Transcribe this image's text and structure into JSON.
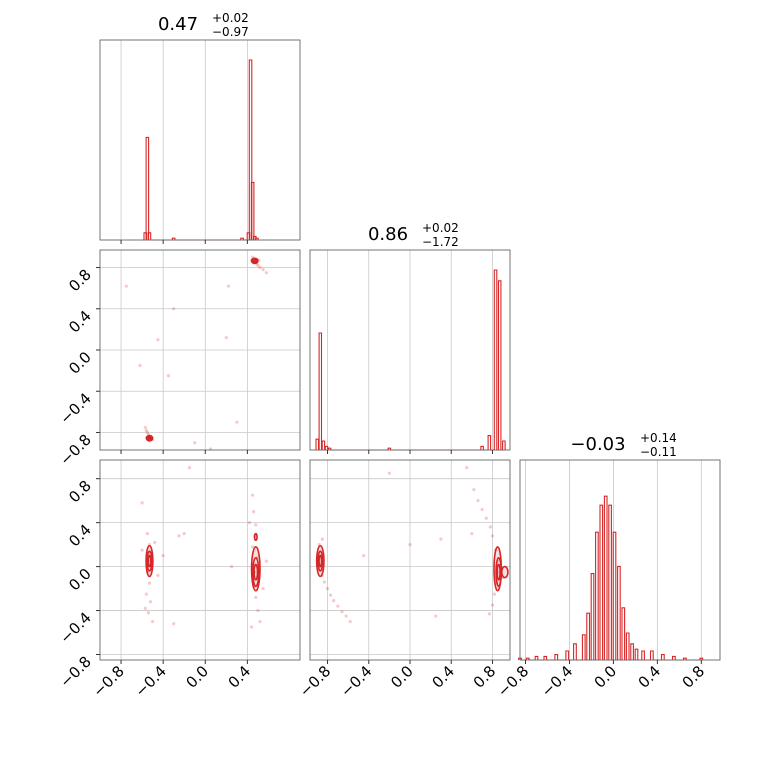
{
  "chart_data": {
    "type": "corner",
    "color": "#d62728",
    "grid": true,
    "titles": [
      {
        "value": "0.47",
        "plus": "+0.02",
        "minus": "−0.97"
      },
      {
        "value": "0.86",
        "plus": "+0.02",
        "minus": "−1.72"
      },
      {
        "value": "−0.03",
        "plus": "+0.14",
        "minus": "−0.11"
      }
    ],
    "ranges": [
      [
        -1.0,
        0.9
      ],
      [
        -0.97,
        0.97
      ],
      [
        -0.85,
        0.97
      ]
    ],
    "ticks": [
      [
        -0.8,
        -0.4,
        0.0,
        0.4
      ],
      [
        -0.8,
        -0.4,
        0.0,
        0.4,
        0.8
      ],
      [
        -0.8,
        -0.4,
        0.0,
        0.4,
        0.8
      ]
    ],
    "tick_labels": [
      [
        "−0.8",
        "−0.4",
        "0.0",
        "0.4"
      ],
      [
        "−0.8",
        "−0.4",
        "0.0",
        "0.4",
        "0.8"
      ],
      [
        "−0.8",
        "−0.4",
        "0.0",
        "0.4",
        "0.8"
      ]
    ],
    "histograms": [
      {
        "param": 0,
        "bins": [
          [
            -0.59,
            0.0
          ],
          [
            -0.57,
            0.04
          ],
          [
            -0.55,
            0.57
          ],
          [
            -0.53,
            0.04
          ],
          [
            -0.51,
            0.0
          ],
          [
            -0.3,
            0.01
          ],
          [
            0.35,
            0.01
          ],
          [
            0.41,
            0.04
          ],
          [
            0.43,
            1.0
          ],
          [
            0.45,
            0.32
          ],
          [
            0.47,
            0.02
          ],
          [
            0.49,
            0.01
          ]
        ]
      },
      {
        "param": 1,
        "bins": [
          [
            -0.9,
            0.06
          ],
          [
            -0.87,
            0.65
          ],
          [
            -0.84,
            0.05
          ],
          [
            -0.81,
            0.02
          ],
          [
            -0.78,
            0.01
          ],
          [
            -0.2,
            0.01
          ],
          [
            0.7,
            0.02
          ],
          [
            0.77,
            0.08
          ],
          [
            0.83,
            1.0
          ],
          [
            0.87,
            0.94
          ],
          [
            0.91,
            0.05
          ]
        ]
      },
      {
        "param": 2,
        "bins": [
          [
            -0.85,
            0.01
          ],
          [
            -0.78,
            0.01
          ],
          [
            -0.7,
            0.02
          ],
          [
            -0.62,
            0.02
          ],
          [
            -0.52,
            0.03
          ],
          [
            -0.42,
            0.05
          ],
          [
            -0.35,
            0.09
          ],
          [
            -0.27,
            0.14
          ],
          [
            -0.23,
            0.26
          ],
          [
            -0.19,
            0.48
          ],
          [
            -0.15,
            0.71
          ],
          [
            -0.11,
            0.86
          ],
          [
            -0.07,
            0.91
          ],
          [
            -0.03,
            0.86
          ],
          [
            0.01,
            0.71
          ],
          [
            0.05,
            0.52
          ],
          [
            0.09,
            0.29
          ],
          [
            0.13,
            0.15
          ],
          [
            0.17,
            0.09
          ],
          [
            0.21,
            0.06
          ],
          [
            0.27,
            0.05
          ],
          [
            0.35,
            0.05
          ],
          [
            0.45,
            0.03
          ],
          [
            0.55,
            0.02
          ],
          [
            0.65,
            0.01
          ],
          [
            0.8,
            0.01
          ]
        ]
      }
    ],
    "scatter_2d": [
      {
        "x": 0,
        "y": 1,
        "points": [
          [
            0.47,
            0.86
          ],
          [
            0.48,
            0.85
          ],
          [
            0.46,
            0.88
          ],
          [
            0.5,
            0.82
          ],
          [
            0.52,
            0.8
          ],
          [
            0.45,
            0.9
          ],
          [
            0.55,
            0.78
          ],
          [
            0.58,
            0.75
          ],
          [
            0.49,
            0.84
          ],
          [
            0.44,
            0.87
          ],
          [
            0.51,
            0.87
          ],
          [
            -0.53,
            -0.86
          ],
          [
            -0.52,
            -0.84
          ],
          [
            -0.54,
            -0.82
          ],
          [
            -0.55,
            -0.8
          ],
          [
            -0.51,
            -0.85
          ],
          [
            -0.56,
            -0.78
          ],
          [
            -0.57,
            -0.75
          ],
          [
            -0.5,
            -0.87
          ],
          [
            -0.53,
            -0.88
          ],
          [
            -0.35,
            -0.25
          ],
          [
            -0.62,
            -0.15
          ],
          [
            -0.75,
            0.62
          ],
          [
            -0.3,
            0.4
          ],
          [
            0.2,
            0.12
          ],
          [
            0.05,
            -0.96
          ],
          [
            -0.1,
            -0.9
          ],
          [
            0.3,
            -0.7
          ],
          [
            0.22,
            0.62
          ],
          [
            -0.45,
            0.1
          ]
        ]
      },
      {
        "x": 0,
        "y": 2,
        "points": [
          [
            -0.53,
            0.2
          ],
          [
            -0.54,
            0.12
          ],
          [
            -0.52,
            0.05
          ],
          [
            -0.55,
            -0.05
          ],
          [
            -0.53,
            -0.15
          ],
          [
            -0.56,
            -0.25
          ],
          [
            -0.52,
            -0.32
          ],
          [
            -0.54,
            -0.42
          ],
          [
            -0.5,
            -0.5
          ],
          [
            -0.57,
            -0.38
          ],
          [
            -0.55,
            0.3
          ],
          [
            -0.6,
            0.15
          ],
          [
            -0.48,
            0.22
          ],
          [
            0.45,
            0.65
          ],
          [
            0.46,
            0.5
          ],
          [
            0.48,
            0.38
          ],
          [
            0.47,
            0.28
          ],
          [
            0.45,
            0.18
          ],
          [
            0.49,
            0.08
          ],
          [
            0.47,
            -0.05
          ],
          [
            0.46,
            -0.18
          ],
          [
            0.48,
            -0.28
          ],
          [
            0.5,
            -0.4
          ],
          [
            0.52,
            -0.5
          ],
          [
            0.44,
            -0.55
          ],
          [
            0.55,
            -0.2
          ],
          [
            0.58,
            0.05
          ],
          [
            0.42,
            0.4
          ],
          [
            -0.6,
            0.58
          ],
          [
            -0.2,
            0.3
          ],
          [
            -0.45,
            -0.08
          ],
          [
            -0.3,
            -0.52
          ],
          [
            -0.15,
            0.9
          ],
          [
            -0.25,
            0.28
          ],
          [
            0.25,
            0.0
          ],
          [
            -0.4,
            0.1
          ]
        ]
      },
      {
        "x": 1,
        "y": 2,
        "points": [
          [
            -0.88,
            0.2
          ],
          [
            -0.86,
            0.1
          ],
          [
            -0.87,
            0.0
          ],
          [
            -0.85,
            -0.08
          ],
          [
            -0.83,
            -0.14
          ],
          [
            -0.8,
            -0.2
          ],
          [
            -0.77,
            -0.26
          ],
          [
            -0.74,
            -0.31
          ],
          [
            -0.7,
            -0.36
          ],
          [
            -0.66,
            -0.41
          ],
          [
            -0.62,
            -0.45
          ],
          [
            -0.58,
            -0.5
          ],
          [
            -0.85,
            0.25
          ],
          [
            -0.9,
            0.05
          ],
          [
            0.62,
            0.7
          ],
          [
            0.66,
            0.6
          ],
          [
            0.7,
            0.52
          ],
          [
            0.74,
            0.44
          ],
          [
            0.78,
            0.36
          ],
          [
            0.8,
            0.28
          ],
          [
            0.83,
            0.15
          ],
          [
            0.85,
            0.05
          ],
          [
            0.86,
            -0.05
          ],
          [
            0.84,
            -0.15
          ],
          [
            0.82,
            -0.25
          ],
          [
            0.8,
            -0.35
          ],
          [
            0.77,
            -0.43
          ],
          [
            0.88,
            0.0
          ],
          [
            0.9,
            -0.1
          ],
          [
            0.6,
            0.3
          ],
          [
            0.25,
            -0.45
          ],
          [
            -0.2,
            0.85
          ],
          [
            0.0,
            0.2
          ],
          [
            0.55,
            0.9
          ],
          [
            -0.45,
            0.1
          ],
          [
            0.3,
            0.25
          ]
        ]
      }
    ],
    "contours_2d": [
      {
        "x": 0,
        "y": 1,
        "ellipses": [
          [
            0.47,
            0.865,
            0.03,
            0.025
          ],
          [
            0.47,
            0.865,
            0.02,
            0.016
          ],
          [
            0.47,
            0.865,
            0.012,
            0.01
          ],
          [
            -0.53,
            -0.855,
            0.03,
            0.025
          ],
          [
            -0.53,
            -0.855,
            0.018,
            0.015
          ],
          [
            -0.53,
            -0.855,
            0.01,
            0.008
          ]
        ]
      },
      {
        "x": 0,
        "y": 2,
        "ellipses": [
          [
            -0.53,
            0.05,
            0.032,
            0.14
          ],
          [
            -0.53,
            0.05,
            0.022,
            0.09
          ],
          [
            -0.53,
            0.05,
            0.012,
            0.05
          ],
          [
            0.48,
            -0.02,
            0.04,
            0.2
          ],
          [
            0.48,
            -0.05,
            0.028,
            0.13
          ],
          [
            0.48,
            -0.05,
            0.016,
            0.07
          ],
          [
            0.48,
            0.27,
            0.012,
            0.03
          ]
        ]
      },
      {
        "x": 1,
        "y": 2,
        "ellipses": [
          [
            -0.87,
            0.05,
            0.035,
            0.14
          ],
          [
            -0.87,
            0.05,
            0.022,
            0.09
          ],
          [
            -0.87,
            0.05,
            0.012,
            0.05
          ],
          [
            0.85,
            -0.02,
            0.035,
            0.2
          ],
          [
            0.86,
            -0.05,
            0.025,
            0.13
          ],
          [
            0.86,
            -0.05,
            0.014,
            0.07
          ],
          [
            0.92,
            -0.05,
            0.03,
            0.05
          ]
        ]
      }
    ]
  }
}
